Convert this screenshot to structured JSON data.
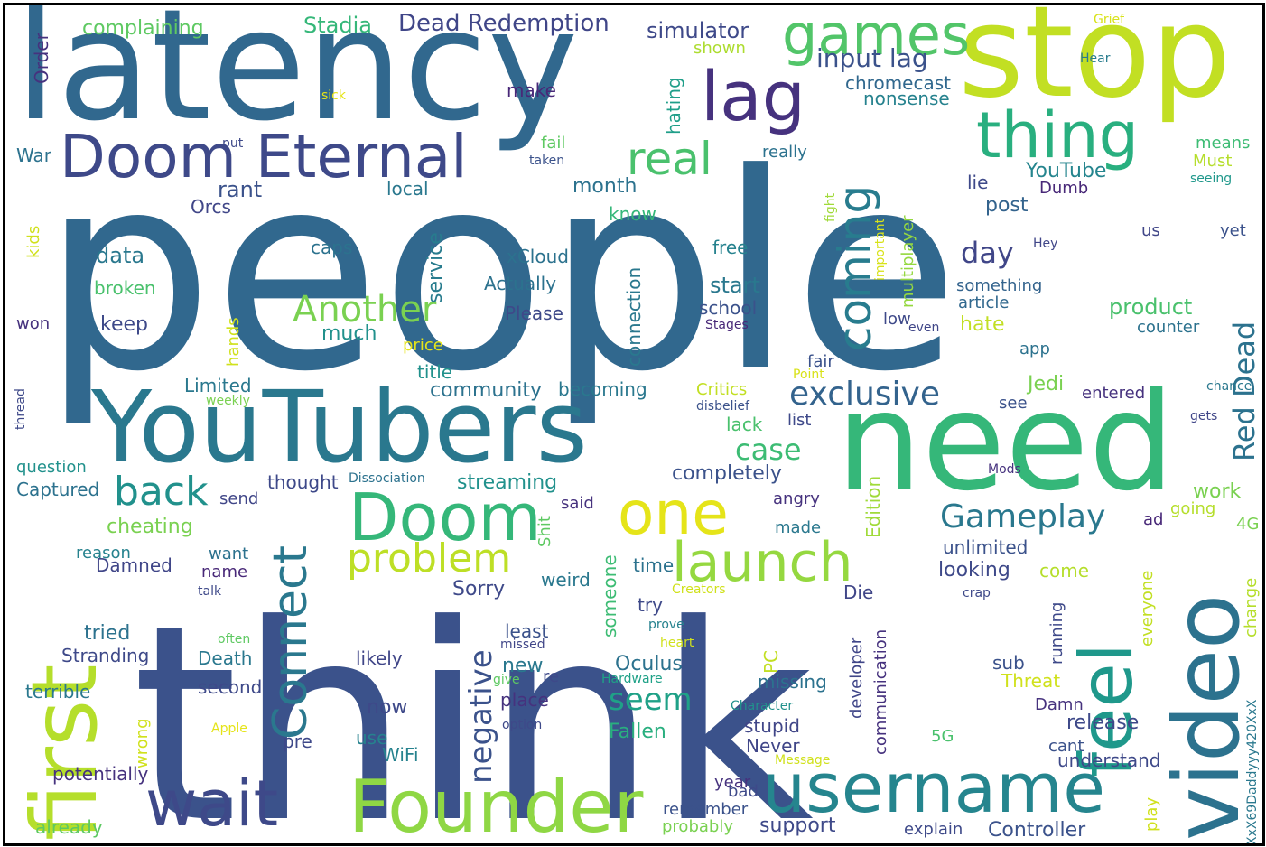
{
  "palette": [
    "#46327e",
    "#3e4989",
    "#365c8d",
    "#2e6e8e",
    "#277f8e",
    "#21918c",
    "#1fa187",
    "#2db27d",
    "#4ac16d",
    "#71cf57",
    "#a0da39",
    "#d0e11c",
    "#fde725"
  ],
  "words": [
    {
      "text": "people",
      "size": 300,
      "color": "#31688e"
    },
    {
      "text": "think",
      "size": 300,
      "color": "#3b528b"
    },
    {
      "text": "latency",
      "size": 170,
      "color": "#31688e"
    },
    {
      "text": "stop",
      "size": 140,
      "color": "#c2df23"
    },
    {
      "text": "need",
      "size": 150,
      "color": "#35b779"
    },
    {
      "text": "YouTubers",
      "size": 110,
      "color": "#2a788e"
    },
    {
      "text": "video",
      "size": 100,
      "color": "#2c728e"
    },
    {
      "text": "first",
      "size": 100,
      "color": "#b5de2b"
    },
    {
      "text": "Doom Eternal",
      "size": 66,
      "color": "#3e4989"
    },
    {
      "text": "Founder",
      "size": 80,
      "color": "#8fd744"
    },
    {
      "text": "username",
      "size": 76,
      "color": "#25858e"
    },
    {
      "text": "wait",
      "size": 70,
      "color": "#3e4989"
    },
    {
      "text": "Doom",
      "size": 72,
      "color": "#35b779"
    },
    {
      "text": "lag",
      "size": 76,
      "color": "#46327e"
    },
    {
      "text": "thing",
      "size": 70,
      "color": "#29af7f"
    },
    {
      "text": "games",
      "size": 62,
      "color": "#52c569"
    },
    {
      "text": "feel",
      "size": 80,
      "color": "#1f988b"
    },
    {
      "text": "one",
      "size": 66,
      "color": "#e5e419"
    },
    {
      "text": "launch",
      "size": 60,
      "color": "#95d840"
    },
    {
      "text": "Connect",
      "size": 52,
      "color": "#2a788e"
    },
    {
      "text": "coming",
      "size": 50,
      "color": "#287c8e"
    },
    {
      "text": "real",
      "size": 50,
      "color": "#4ac16d"
    },
    {
      "text": "problem",
      "size": 44,
      "color": "#bddf26"
    },
    {
      "text": "back",
      "size": 44,
      "color": "#21918c"
    },
    {
      "text": "Another",
      "size": 40,
      "color": "#7ad151"
    },
    {
      "text": "exclusive",
      "size": 36,
      "color": "#33638d"
    },
    {
      "text": "Gameplay",
      "size": 36,
      "color": "#2a788e"
    },
    {
      "text": "negative",
      "size": 34,
      "color": "#3b528b"
    },
    {
      "text": "seem",
      "size": 34,
      "color": "#1fa187"
    },
    {
      "text": "case",
      "size": 32,
      "color": "#3dbc74"
    },
    {
      "text": "day",
      "size": 32,
      "color": "#404688"
    },
    {
      "text": "Red Dead",
      "size": 32,
      "color": "#2c728e"
    },
    {
      "text": "input lag",
      "size": 28,
      "color": "#3b528b"
    },
    {
      "text": "Dead Redemption",
      "size": 26,
      "color": "#404688"
    },
    {
      "text": "Stadia",
      "size": 24,
      "color": "#35b779"
    },
    {
      "text": "simulator",
      "size": 24,
      "color": "#3e4989"
    },
    {
      "text": "complaining",
      "size": 22,
      "color": "#5ec962"
    },
    {
      "text": "Order",
      "size": 20,
      "color": "#46327e"
    },
    {
      "text": "sick",
      "size": 14,
      "color": "#e5e419"
    },
    {
      "text": "make",
      "size": 20,
      "color": "#482878"
    },
    {
      "text": "chromecast",
      "size": 20,
      "color": "#31688e"
    },
    {
      "text": "nonsense",
      "size": 20,
      "color": "#26828e"
    },
    {
      "text": "hating",
      "size": 20,
      "color": "#1f9e89"
    },
    {
      "text": "shown",
      "size": 18,
      "color": "#addc30"
    },
    {
      "text": "Grief",
      "size": 14,
      "color": "#d8e219"
    },
    {
      "text": "Hear",
      "size": 14,
      "color": "#287c8e"
    },
    {
      "text": "Must",
      "size": 18,
      "color": "#b5de2b"
    },
    {
      "text": "means",
      "size": 18,
      "color": "#3dbc74"
    },
    {
      "text": "seeing",
      "size": 14,
      "color": "#1f988b"
    },
    {
      "text": "really",
      "size": 18,
      "color": "#2c728e"
    },
    {
      "text": "fail",
      "size": 18,
      "color": "#5ec962"
    },
    {
      "text": "taken",
      "size": 14,
      "color": "#3b528b"
    },
    {
      "text": "put",
      "size": 14,
      "color": "#3e4989"
    },
    {
      "text": "War",
      "size": 20,
      "color": "#2c728e"
    },
    {
      "text": "rant",
      "size": 24,
      "color": "#3b528b"
    },
    {
      "text": "Orcs",
      "size": 20,
      "color": "#404688"
    },
    {
      "text": "local",
      "size": 20,
      "color": "#2a788e"
    },
    {
      "text": "month",
      "size": 22,
      "color": "#2c728e"
    },
    {
      "text": "know",
      "size": 20,
      "color": "#35b779"
    },
    {
      "text": "YouTube",
      "size": 22,
      "color": "#25858e"
    },
    {
      "text": "lie",
      "size": 20,
      "color": "#3e4989"
    },
    {
      "text": "Dumb",
      "size": 18,
      "color": "#482878"
    },
    {
      "text": "post",
      "size": 22,
      "color": "#33638d"
    },
    {
      "text": "kids",
      "size": 18,
      "color": "#d0e11c"
    },
    {
      "text": "caps",
      "size": 20,
      "color": "#2c728e"
    },
    {
      "text": "service",
      "size": 22,
      "color": "#287c8e"
    },
    {
      "text": "data",
      "size": 24,
      "color": "#2a788e"
    },
    {
      "text": "xCloud",
      "size": 20,
      "color": "#2c728e"
    },
    {
      "text": "free",
      "size": 20,
      "color": "#26828e"
    },
    {
      "text": "fight",
      "size": 14,
      "color": "#a0da39"
    },
    {
      "text": "important",
      "size": 14,
      "color": "#d8e219"
    },
    {
      "text": "multiplayer",
      "size": 18,
      "color": "#95d840"
    },
    {
      "text": "Hey",
      "size": 14,
      "color": "#404688"
    },
    {
      "text": "us",
      "size": 18,
      "color": "#404688"
    },
    {
      "text": "yet",
      "size": 18,
      "color": "#3b528b"
    },
    {
      "text": "broken",
      "size": 20,
      "color": "#4ac16d"
    },
    {
      "text": "Actually",
      "size": 20,
      "color": "#2c728e"
    },
    {
      "text": "start",
      "size": 24,
      "color": "#2a788e"
    },
    {
      "text": "something",
      "size": 18,
      "color": "#33638d"
    },
    {
      "text": "article",
      "size": 18,
      "color": "#31688e"
    },
    {
      "text": "product",
      "size": 24,
      "color": "#4ac16d"
    },
    {
      "text": "counter",
      "size": 18,
      "color": "#2c728e"
    },
    {
      "text": "connection",
      "size": 20,
      "color": "#2a788e"
    },
    {
      "text": "school",
      "size": 20,
      "color": "#3b528b"
    },
    {
      "text": "Please",
      "size": 20,
      "color": "#3e4989"
    },
    {
      "text": "won",
      "size": 18,
      "color": "#46327e"
    },
    {
      "text": "keep",
      "size": 22,
      "color": "#3e4989"
    },
    {
      "text": "much",
      "size": 22,
      "color": "#21918c"
    },
    {
      "text": "hands",
      "size": 18,
      "color": "#d0e11c"
    },
    {
      "text": "Stages",
      "size": 14,
      "color": "#482878"
    },
    {
      "text": "low",
      "size": 18,
      "color": "#3e4989"
    },
    {
      "text": "even",
      "size": 14,
      "color": "#404688"
    },
    {
      "text": "hate",
      "size": 22,
      "color": "#c2df23"
    },
    {
      "text": "price",
      "size": 18,
      "color": "#e5e419"
    },
    {
      "text": "app",
      "size": 18,
      "color": "#2c728e"
    },
    {
      "text": "fair",
      "size": 18,
      "color": "#3b528b"
    },
    {
      "text": "Point",
      "size": 14,
      "color": "#d8e219"
    },
    {
      "text": "chance",
      "size": 14,
      "color": "#2a788e"
    },
    {
      "text": "thread",
      "size": 14,
      "color": "#3e4989"
    },
    {
      "text": "Limited",
      "size": 20,
      "color": "#2a788e"
    },
    {
      "text": "weekly",
      "size": 14,
      "color": "#7ad151"
    },
    {
      "text": "title",
      "size": 20,
      "color": "#21918c"
    },
    {
      "text": "community",
      "size": 22,
      "color": "#2c728e"
    },
    {
      "text": "becoming",
      "size": 20,
      "color": "#2a788e"
    },
    {
      "text": "Critics",
      "size": 18,
      "color": "#c2df23"
    },
    {
      "text": "disbelief",
      "size": 14,
      "color": "#3b528b"
    },
    {
      "text": "Jedi",
      "size": 22,
      "color": "#7ad151"
    },
    {
      "text": "entered",
      "size": 18,
      "color": "#46327e"
    },
    {
      "text": "see",
      "size": 18,
      "color": "#3b528b"
    },
    {
      "text": "gets",
      "size": 14,
      "color": "#404688"
    },
    {
      "text": "list",
      "size": 18,
      "color": "#3e4989"
    },
    {
      "text": "lack",
      "size": 20,
      "color": "#4ac16d"
    },
    {
      "text": "question",
      "size": 18,
      "color": "#21918c"
    },
    {
      "text": "Captured",
      "size": 20,
      "color": "#2c728e"
    },
    {
      "text": "send",
      "size": 18,
      "color": "#404688"
    },
    {
      "text": "thought",
      "size": 20,
      "color": "#3e4989"
    },
    {
      "text": "Dissociation",
      "size": 14,
      "color": "#2c728e"
    },
    {
      "text": "streaming",
      "size": 22,
      "color": "#21918c"
    },
    {
      "text": "completely",
      "size": 22,
      "color": "#3b528b"
    },
    {
      "text": "Edition",
      "size": 20,
      "color": "#a0da39"
    },
    {
      "text": "Mods",
      "size": 14,
      "color": "#46327e"
    },
    {
      "text": "work",
      "size": 22,
      "color": "#7ad151"
    },
    {
      "text": "cheating",
      "size": 22,
      "color": "#7ad151"
    },
    {
      "text": "said",
      "size": 18,
      "color": "#46327e"
    },
    {
      "text": "angry",
      "size": 18,
      "color": "#46327e"
    },
    {
      "text": "going",
      "size": 18,
      "color": "#b5de2b"
    },
    {
      "text": "ad",
      "size": 18,
      "color": "#482878"
    },
    {
      "text": "4G",
      "size": 18,
      "color": "#7ad151"
    },
    {
      "text": "Shit",
      "size": 18,
      "color": "#5ec962"
    },
    {
      "text": "made",
      "size": 18,
      "color": "#2a788e"
    },
    {
      "text": "reason",
      "size": 18,
      "color": "#26828e"
    },
    {
      "text": "want",
      "size": 18,
      "color": "#2c728e"
    },
    {
      "text": "unlimited",
      "size": 20,
      "color": "#3b528b"
    },
    {
      "text": "looking",
      "size": 22,
      "color": "#3e4989"
    },
    {
      "text": "Damned",
      "size": 20,
      "color": "#404688"
    },
    {
      "text": "name",
      "size": 18,
      "color": "#482878"
    },
    {
      "text": "time",
      "size": 20,
      "color": "#2c728e"
    },
    {
      "text": "Sorry",
      "size": 22,
      "color": "#3e4989"
    },
    {
      "text": "someone",
      "size": 20,
      "color": "#3dbc74"
    },
    {
      "text": "weird",
      "size": 20,
      "color": "#2a788e"
    },
    {
      "text": "come",
      "size": 20,
      "color": "#b5de2b"
    },
    {
      "text": "everyone",
      "size": 18,
      "color": "#c2df23"
    },
    {
      "text": "change",
      "size": 18,
      "color": "#b5de2b"
    },
    {
      "text": "talk",
      "size": 14,
      "color": "#3e4989"
    },
    {
      "text": "Creators",
      "size": 14,
      "color": "#d0e11c"
    },
    {
      "text": "crap",
      "size": 14,
      "color": "#3e4989"
    },
    {
      "text": "Die",
      "size": 20,
      "color": "#404688"
    },
    {
      "text": "try",
      "size": 20,
      "color": "#3e4989"
    },
    {
      "text": "running",
      "size": 18,
      "color": "#3e4989"
    },
    {
      "text": "tried",
      "size": 22,
      "color": "#2c728e"
    },
    {
      "text": "often",
      "size": 14,
      "color": "#5ec962"
    },
    {
      "text": "least",
      "size": 20,
      "color": "#3b528b"
    },
    {
      "text": "prove",
      "size": 14,
      "color": "#26828e"
    },
    {
      "text": "Stranding",
      "size": 20,
      "color": "#3e4989"
    },
    {
      "text": "Death",
      "size": 20,
      "color": "#2a788e"
    },
    {
      "text": "missed",
      "size": 14,
      "color": "#404688"
    },
    {
      "text": "heart",
      "size": 14,
      "color": "#d0e11c"
    },
    {
      "text": "likely",
      "size": 20,
      "color": "#404688"
    },
    {
      "text": "new",
      "size": 22,
      "color": "#2a788e"
    },
    {
      "text": "Oculus",
      "size": 22,
      "color": "#2c728e"
    },
    {
      "text": "PC",
      "size": 20,
      "color": "#c2df23"
    },
    {
      "text": "developer",
      "size": 18,
      "color": "#404688"
    },
    {
      "text": "communication",
      "size": 18,
      "color": "#46327e"
    },
    {
      "text": "sub",
      "size": 20,
      "color": "#3b528b"
    },
    {
      "text": "Threat",
      "size": 20,
      "color": "#d0e11c"
    },
    {
      "text": "second",
      "size": 20,
      "color": "#3e4989"
    },
    {
      "text": "re",
      "size": 18,
      "color": "#3e4989"
    },
    {
      "text": "give",
      "size": 14,
      "color": "#5ec962"
    },
    {
      "text": "Hardware",
      "size": 14,
      "color": "#1fa187"
    },
    {
      "text": "missing",
      "size": 20,
      "color": "#2c728e"
    },
    {
      "text": "terrible",
      "size": 20,
      "color": "#2a788e"
    },
    {
      "text": "place",
      "size": 20,
      "color": "#46327e"
    },
    {
      "text": "now",
      "size": 22,
      "color": "#3e4989"
    },
    {
      "text": "Character",
      "size": 14,
      "color": "#21918c"
    },
    {
      "text": "Damn",
      "size": 18,
      "color": "#46327e"
    },
    {
      "text": "wrong",
      "size": 18,
      "color": "#d0e11c"
    },
    {
      "text": "Apple",
      "size": 14,
      "color": "#e5e419"
    },
    {
      "text": "option",
      "size": 14,
      "color": "#3e4989"
    },
    {
      "text": "Fallen",
      "size": 22,
      "color": "#29af7f"
    },
    {
      "text": "stupid",
      "size": 20,
      "color": "#404688"
    },
    {
      "text": "release",
      "size": 22,
      "color": "#3e4989"
    },
    {
      "text": "use",
      "size": 20,
      "color": "#26828e"
    },
    {
      "text": "pre",
      "size": 20,
      "color": "#3e4989"
    },
    {
      "text": "WiFi",
      "size": 20,
      "color": "#26828e"
    },
    {
      "text": "Never",
      "size": 20,
      "color": "#404688"
    },
    {
      "text": "Message",
      "size": 14,
      "color": "#d0e11c"
    },
    {
      "text": "5G",
      "size": 18,
      "color": "#4ac16d"
    },
    {
      "text": "cant",
      "size": 18,
      "color": "#3b528b"
    },
    {
      "text": "understand",
      "size": 20,
      "color": "#3e4989"
    },
    {
      "text": "XxX69Daddyyy420XxX",
      "size": 14,
      "color": "#2a788e"
    },
    {
      "text": "potentially",
      "size": 20,
      "color": "#46327e"
    },
    {
      "text": "year",
      "size": 18,
      "color": "#46327e"
    },
    {
      "text": "bad",
      "size": 18,
      "color": "#3e4989"
    },
    {
      "text": "remember",
      "size": 18,
      "color": "#3b528b"
    },
    {
      "text": "play",
      "size": 18,
      "color": "#d0e11c"
    },
    {
      "text": "already",
      "size": 20,
      "color": "#5ec962"
    },
    {
      "text": "probably",
      "size": 18,
      "color": "#7ad151"
    },
    {
      "text": "support",
      "size": 22,
      "color": "#3e4989"
    },
    {
      "text": "explain",
      "size": 18,
      "color": "#3e4989"
    },
    {
      "text": "Controller",
      "size": 22,
      "color": "#3b528b"
    }
  ]
}
